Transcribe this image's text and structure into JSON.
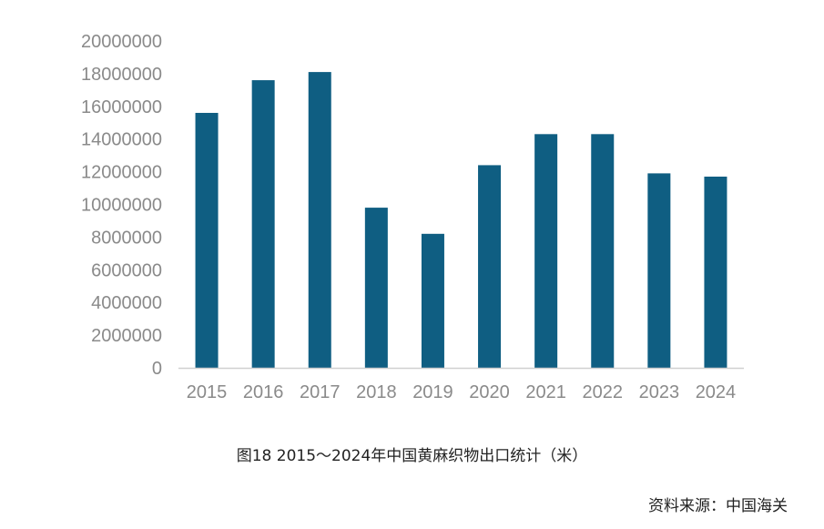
{
  "chart_data": {
    "type": "bar",
    "categories": [
      "2015",
      "2016",
      "2017",
      "2018",
      "2019",
      "2020",
      "2021",
      "2022",
      "2023",
      "2024"
    ],
    "values": [
      15600000,
      17600000,
      18100000,
      9800000,
      8200000,
      12400000,
      14300000,
      14300000,
      11900000,
      11700000
    ],
    "ylim": [
      0,
      20000000
    ],
    "yticks": [
      "0",
      "2000000",
      "4000000",
      "6000000",
      "8000000",
      "10000000",
      "12000000",
      "14000000",
      "16000000",
      "18000000",
      "20000000"
    ],
    "grid": false,
    "bar_color": "#0f5e82"
  },
  "caption": "图18   2015～2024年中国黄麻织物出口统计（米）",
  "source": "资料来源：中国海关"
}
